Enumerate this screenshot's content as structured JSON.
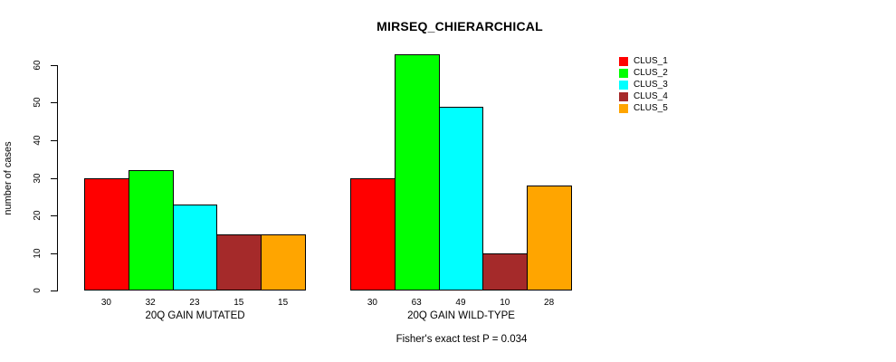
{
  "chart_data": {
    "type": "bar",
    "title": "MIRSEQ_CHIERARCHICAL",
    "ylabel": "number of cases",
    "ylim": [
      0,
      63
    ],
    "yticks": [
      0,
      10,
      20,
      30,
      40,
      50,
      60
    ],
    "grid": false,
    "legend_position": "top-right",
    "axis_color": "#000000",
    "bar_border_color": "#000000",
    "categories": [
      "20Q GAIN MUTATED",
      "20Q GAIN WILD-TYPE"
    ],
    "series": [
      {
        "name": "CLUS_1",
        "color": "#FF0000",
        "values": [
          30,
          30
        ]
      },
      {
        "name": "CLUS_2",
        "color": "#00FF00",
        "values": [
          32,
          63
        ]
      },
      {
        "name": "CLUS_3",
        "color": "#00FFFF",
        "values": [
          23,
          49
        ]
      },
      {
        "name": "CLUS_4",
        "color": "#A52A2A",
        "values": [
          15,
          10
        ]
      },
      {
        "name": "CLUS_5",
        "color": "#FFA500",
        "values": [
          15,
          28
        ]
      }
    ],
    "annotation": "Fisher's exact test P = 0.034"
  }
}
